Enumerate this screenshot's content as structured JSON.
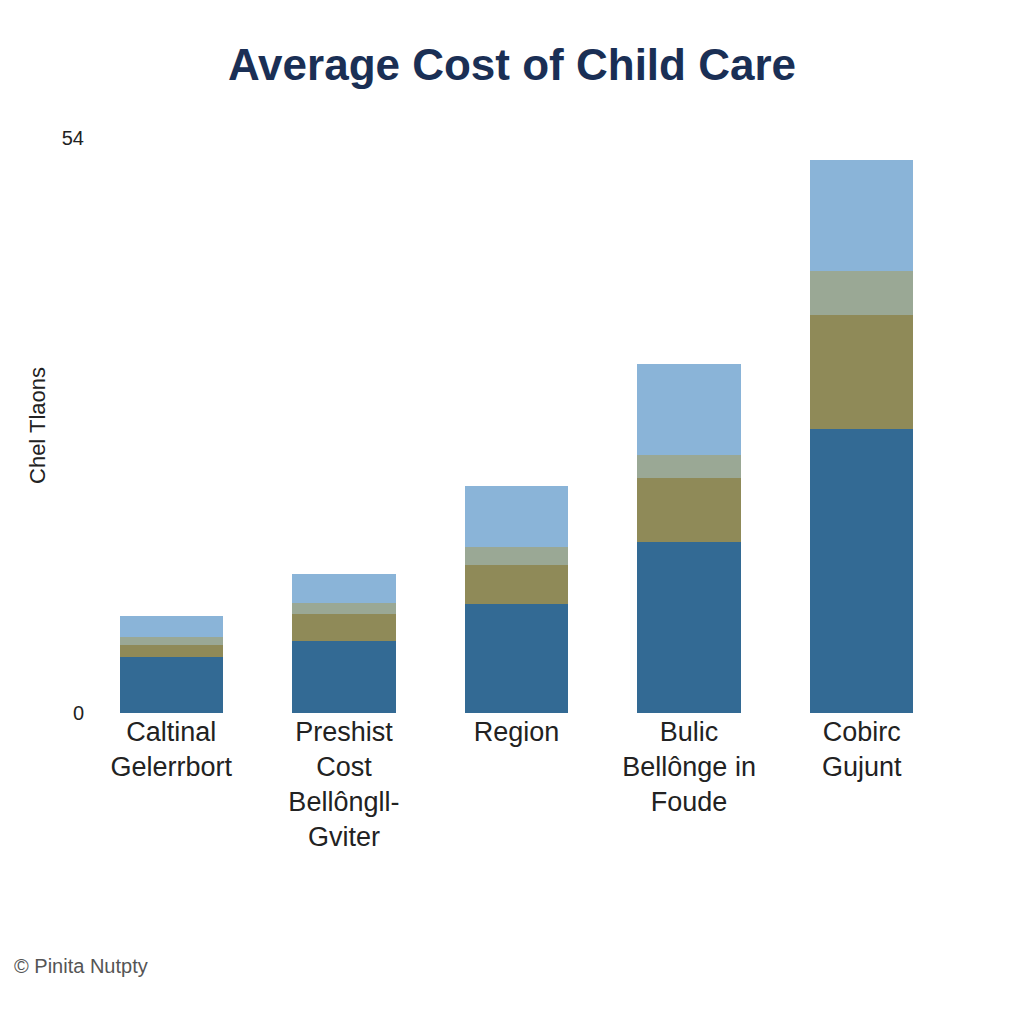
{
  "chart_data": {
    "type": "bar",
    "title": "Average Cost of Child Care",
    "y_label": "Chel Tlaons",
    "categories": [
      "Caltinal\nGelerrbort",
      "Preshist\nCost\nBellôngll-\nGviter",
      "Region",
      "Bulic\nBellônge in\nFoude",
      "Cobirc\nGujunt"
    ],
    "series": [
      {
        "color": "#336a94",
        "values": [
          5.3,
          6.8,
          10.2,
          16.1,
          26.7
        ]
      },
      {
        "color": "#8f8a58",
        "values": [
          1.1,
          2.5,
          3.7,
          6.0,
          10.7
        ]
      },
      {
        "color": "#9aa895",
        "values": [
          0.7,
          1.0,
          1.7,
          2.1,
          4.1
        ]
      },
      {
        "color": "#8ab4d8",
        "values": [
          2.0,
          2.8,
          5.7,
          8.6,
          10.4
        ]
      }
    ],
    "stacked": true,
    "ylim": [
      0,
      54
    ],
    "yticks": [
      0,
      54
    ],
    "grid": true,
    "annotations": [
      "© Pinita Nutpty"
    ]
  }
}
